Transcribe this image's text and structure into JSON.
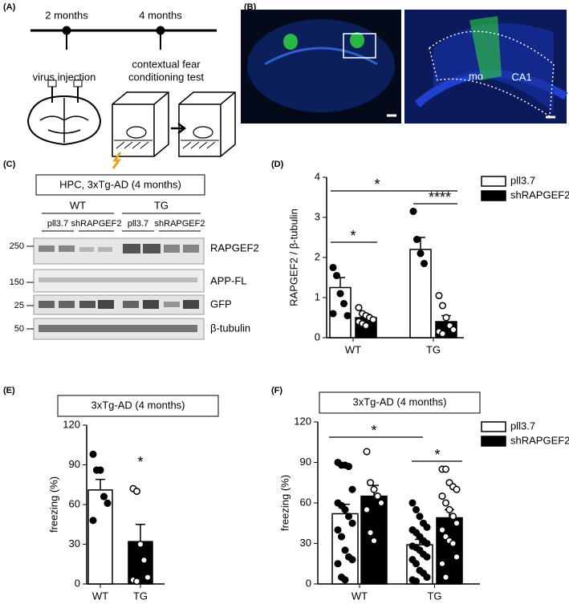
{
  "panel_letters": [
    "(A)",
    "(B)",
    "(C)",
    "(D)",
    "(E)",
    "(F)"
  ],
  "panel_a": {
    "timeline": [
      "2 months",
      "4 months"
    ],
    "steps": [
      "virus injection",
      "contextual fear",
      "conditioning test"
    ]
  },
  "panel_b": {
    "regions": [
      "mo",
      "CA1"
    ]
  },
  "panel_c": {
    "title": "HPC, 3xTg-AD (4 months)",
    "groups": [
      "WT",
      "TG"
    ],
    "conditions": [
      "pll3.7",
      "shRAPGEF2",
      "pll3.7",
      "shRAPGEF2"
    ],
    "markers": [
      "250",
      "150",
      "25",
      "50"
    ],
    "proteins": [
      "RAPGEF2",
      "APP-FL",
      "GFP",
      "β-tubulin"
    ]
  },
  "chart_data": [
    {
      "type": "bar",
      "ylabel": "RAPGEF2 / β-tubulin",
      "categories": [
        "WT",
        "TG"
      ],
      "series": [
        {
          "name": "pll3.7",
          "color": "#ffffff",
          "point_color": "#000000",
          "values": [
            1.25,
            2.2
          ],
          "errors": [
            0.25,
            0.3
          ],
          "points": [
            [
              1.75,
              1.55,
              1.1,
              0.85,
              0.55,
              0.6
            ],
            [
              3.15,
              2.45,
              2.1,
              1.85
            ]
          ]
        },
        {
          "name": "shRAPGEF2",
          "color": "#000000",
          "point_color": "#ffffff",
          "values": [
            0.5,
            0.4
          ],
          "errors": [
            0.08,
            0.15
          ],
          "points": [
            [
              0.75,
              0.6,
              0.55,
              0.5,
              0.45,
              0.4,
              0.35,
              0.3
            ],
            [
              1.05,
              0.8,
              0.5,
              0.3,
              0.2,
              0.15,
              0.1
            ]
          ]
        }
      ],
      "ylim": [
        0,
        4
      ],
      "yticks": [
        0,
        1,
        2,
        3,
        4
      ],
      "annotations": [
        "*",
        "*",
        "****"
      ],
      "legend": "top-right"
    },
    {
      "type": "bar",
      "title": "3xTg-AD (4 months)",
      "ylabel": "freezing (%)",
      "categories": [
        "WT",
        "TG"
      ],
      "values": [
        71,
        32
      ],
      "errors": [
        8,
        13
      ],
      "colors": [
        "#ffffff",
        "#000000"
      ],
      "point_colors": [
        "#000000",
        "#ffffff"
      ],
      "points": [
        [
          98,
          86,
          86,
          66,
          61,
          48
        ],
        [
          72,
          70,
          30,
          18,
          5,
          3,
          2
        ]
      ],
      "ylim": [
        0,
        120
      ],
      "yticks": [
        0,
        30,
        60,
        90,
        120
      ],
      "annotations": [
        "*"
      ]
    },
    {
      "type": "bar",
      "title": "3xTg-AD (4 months)",
      "ylabel": "freezing (%)",
      "categories": [
        "WT",
        "TG"
      ],
      "series": [
        {
          "name": "pll3.7",
          "color": "#ffffff",
          "point_color": "#000000",
          "values": [
            52,
            29
          ],
          "errors": [
            7,
            4
          ],
          "points": [
            [
              90,
              88,
              88,
              87,
              70,
              60,
              58,
              55,
              50,
              45,
              40,
              35,
              25,
              20,
              18,
              15,
              5,
              3
            ],
            [
              60,
              55,
              50,
              45,
              42,
              40,
              38,
              35,
              32,
              30,
              28,
              27,
              25,
              22,
              20,
              18,
              15,
              10,
              8,
              5,
              3,
              2
            ]
          ]
        },
        {
          "name": "shRAPGEF2",
          "color": "#000000",
          "point_color": "#ffffff",
          "values": [
            65,
            49
          ],
          "errors": [
            8,
            6
          ],
          "points": [
            [
              98,
              75,
              70,
              65,
              60,
              55,
              38,
              32
            ],
            [
              85,
              85,
              75,
              72,
              70,
              65,
              60,
              55,
              50,
              45,
              40,
              35,
              32,
              30,
              20,
              15,
              5
            ]
          ]
        }
      ],
      "ylim": [
        0,
        120
      ],
      "yticks": [
        0,
        30,
        60,
        90,
        120
      ],
      "annotations": [
        "*",
        "*"
      ],
      "legend": "top-right"
    }
  ]
}
